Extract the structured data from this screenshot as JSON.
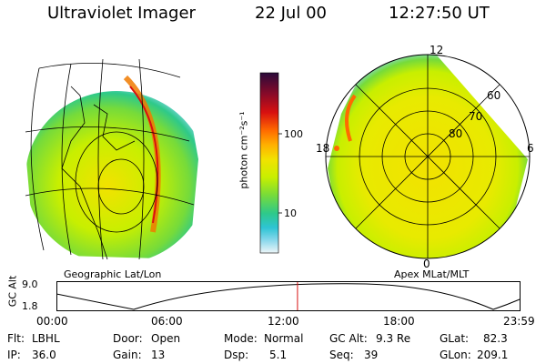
{
  "header": {
    "title": "Ultraviolet Imager",
    "date": "22 Jul 00",
    "time": "12:27:50 UT"
  },
  "geo_panel": {
    "label": "Geographic Lat/Lon"
  },
  "polar_panel": {
    "label": "Apex MLat/MLT",
    "lat_labels": [
      "60",
      "70",
      "80"
    ],
    "mlt_labels": [
      "12",
      "18",
      "6",
      "0"
    ]
  },
  "colorbar": {
    "unit_label": "photon cm⁻²s⁻¹",
    "ticks": [
      "100",
      "10"
    ],
    "colors": [
      "#2a0a3a",
      "#8a0a28",
      "#d81010",
      "#ff6a00",
      "#ffb000",
      "#f2e200",
      "#c8ef00",
      "#76db3a",
      "#2ec98a",
      "#2ec4d4",
      "#8ad8ec",
      "#d2ecf4"
    ]
  },
  "altitude_plot": {
    "ylabel": "GC Alt",
    "y_ticks": [
      "9.0",
      "1.8"
    ],
    "x_ticks": [
      "00:00",
      "06:00",
      "12:00",
      "18:00",
      "23:59"
    ],
    "current_time_hours": 12.46
  },
  "info": {
    "flt_label": "Flt:",
    "flt_value": "LBHL",
    "door_label": "Door:",
    "door_value": "Open",
    "mode_label": "Mode:",
    "mode_value": "Normal",
    "gcalt_label": "GC Alt:",
    "gcalt_value": "9.3 Re",
    "glat_label": "GLat:",
    "glat_value": "82.3",
    "ip_label": "IP:",
    "ip_value": "36.0",
    "gain_label": "Gain:",
    "gain_value": "13",
    "dsp_label": "Dsp:",
    "dsp_value": "5.1",
    "seq_label": "Seq:",
    "seq_value": "39",
    "glon_label": "GLon:",
    "glon_value": "209.1"
  }
}
